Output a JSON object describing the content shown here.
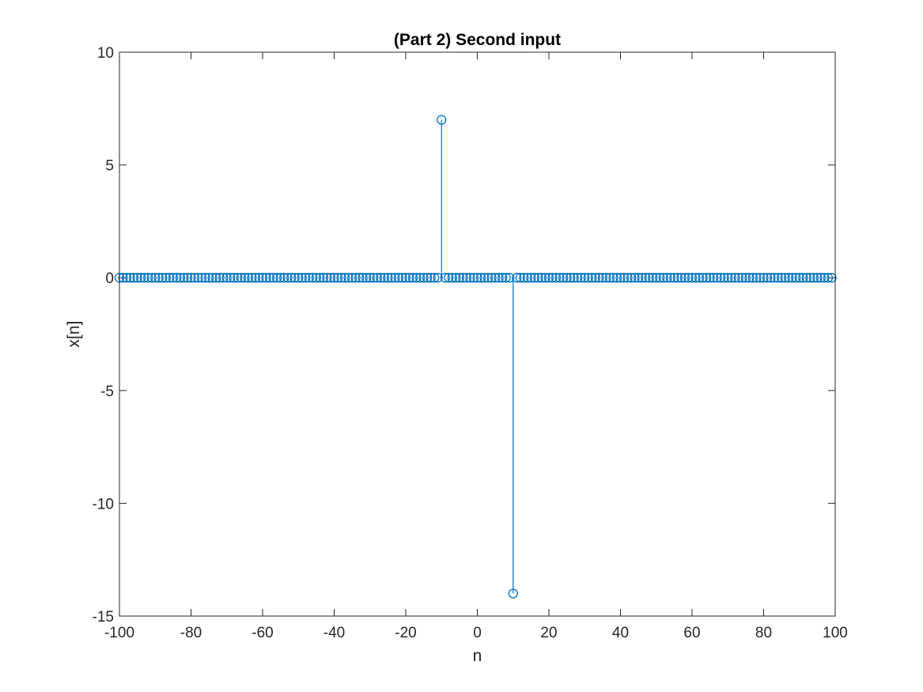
{
  "chart_data": {
    "type": "stem",
    "title": "(Part 2) Second input",
    "xlabel": "n",
    "ylabel": "x[n]",
    "xlim": [
      -100,
      100
    ],
    "ylim": [
      -15,
      10
    ],
    "xticks": [
      -100,
      -80,
      -60,
      -40,
      -20,
      0,
      20,
      40,
      60,
      80,
      100
    ],
    "yticks": [
      -15,
      -10,
      -5,
      0,
      5,
      10
    ],
    "n_range": [
      -100,
      99
    ],
    "baseline_value": 0,
    "nonzero_points": [
      {
        "x": -10,
        "y": 7
      },
      {
        "x": 10,
        "y": -14
      }
    ],
    "grid": false,
    "legend": "none"
  },
  "colors": {
    "series": "#0072BD",
    "axes": "#262626"
  }
}
